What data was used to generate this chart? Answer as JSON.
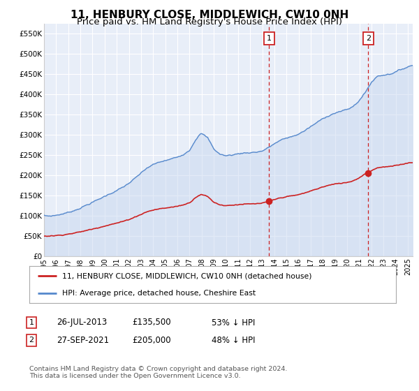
{
  "title": "11, HENBURY CLOSE, MIDDLEWICH, CW10 0NH",
  "subtitle": "Price paid vs. HM Land Registry's House Price Index (HPI)",
  "title_fontsize": 11,
  "subtitle_fontsize": 9.5,
  "ylim": [
    0,
    575000
  ],
  "xlim_start": 1995.0,
  "xlim_end": 2025.4,
  "yticks": [
    0,
    50000,
    100000,
    150000,
    200000,
    250000,
    300000,
    350000,
    400000,
    450000,
    500000,
    550000
  ],
  "ytick_labels": [
    "£0",
    "£50K",
    "£100K",
    "£150K",
    "£200K",
    "£250K",
    "£300K",
    "£350K",
    "£400K",
    "£450K",
    "£500K",
    "£550K"
  ],
  "xticks": [
    1995,
    1996,
    1997,
    1998,
    1999,
    2000,
    2001,
    2002,
    2003,
    2004,
    2005,
    2006,
    2007,
    2008,
    2009,
    2010,
    2011,
    2012,
    2013,
    2014,
    2015,
    2016,
    2017,
    2018,
    2019,
    2020,
    2021,
    2022,
    2023,
    2024,
    2025
  ],
  "background_color": "#e8eef8",
  "grid_color": "#ffffff",
  "hpi_color": "#5588cc",
  "hpi_fill_color": "#c8d8f0",
  "price_color": "#cc2222",
  "transaction1_x": 2013.56,
  "transaction1_y": 135500,
  "transaction2_x": 2021.74,
  "transaction2_y": 205000,
  "legend_label_red": "11, HENBURY CLOSE, MIDDLEWICH, CW10 0NH (detached house)",
  "legend_label_blue": "HPI: Average price, detached house, Cheshire East",
  "footnote": "Contains HM Land Registry data © Crown copyright and database right 2024.\nThis data is licensed under the Open Government Licence v3.0.",
  "table_row1": [
    "1",
    "26-JUL-2013",
    "£135,500",
    "53% ↓ HPI"
  ],
  "table_row2": [
    "2",
    "27-SEP-2021",
    "£205,000",
    "48% ↓ HPI"
  ],
  "hpi_knots_x": [
    1995,
    1995.5,
    1996,
    1996.5,
    1997,
    1997.5,
    1998,
    1998.5,
    1999,
    1999.5,
    2000,
    2000.5,
    2001,
    2001.5,
    2002,
    2002.5,
    2003,
    2003.5,
    2004,
    2004.5,
    2005,
    2005.5,
    2006,
    2006.5,
    2007,
    2007.25,
    2007.5,
    2007.75,
    2008,
    2008.5,
    2009,
    2009.5,
    2010,
    2010.5,
    2011,
    2011.5,
    2012,
    2012.5,
    2013,
    2013.5,
    2014,
    2014.5,
    2015,
    2015.5,
    2016,
    2016.5,
    2017,
    2017.5,
    2018,
    2018.5,
    2019,
    2019.5,
    2020,
    2020.5,
    2021,
    2021.5,
    2022,
    2022.5,
    2023,
    2023.5,
    2024,
    2024.5,
    2025,
    2025.4
  ],
  "hpi_knots_y": [
    98000,
    99000,
    101000,
    104000,
    108000,
    113000,
    119000,
    126000,
    133000,
    140000,
    148000,
    155000,
    162000,
    170000,
    180000,
    192000,
    205000,
    218000,
    226000,
    232000,
    236000,
    240000,
    245000,
    252000,
    262000,
    275000,
    288000,
    298000,
    303000,
    292000,
    265000,
    252000,
    248000,
    250000,
    253000,
    255000,
    256000,
    257000,
    260000,
    268000,
    278000,
    286000,
    292000,
    296000,
    302000,
    310000,
    320000,
    330000,
    340000,
    348000,
    354000,
    358000,
    362000,
    370000,
    385000,
    405000,
    430000,
    445000,
    448000,
    450000,
    455000,
    462000,
    468000,
    472000
  ]
}
